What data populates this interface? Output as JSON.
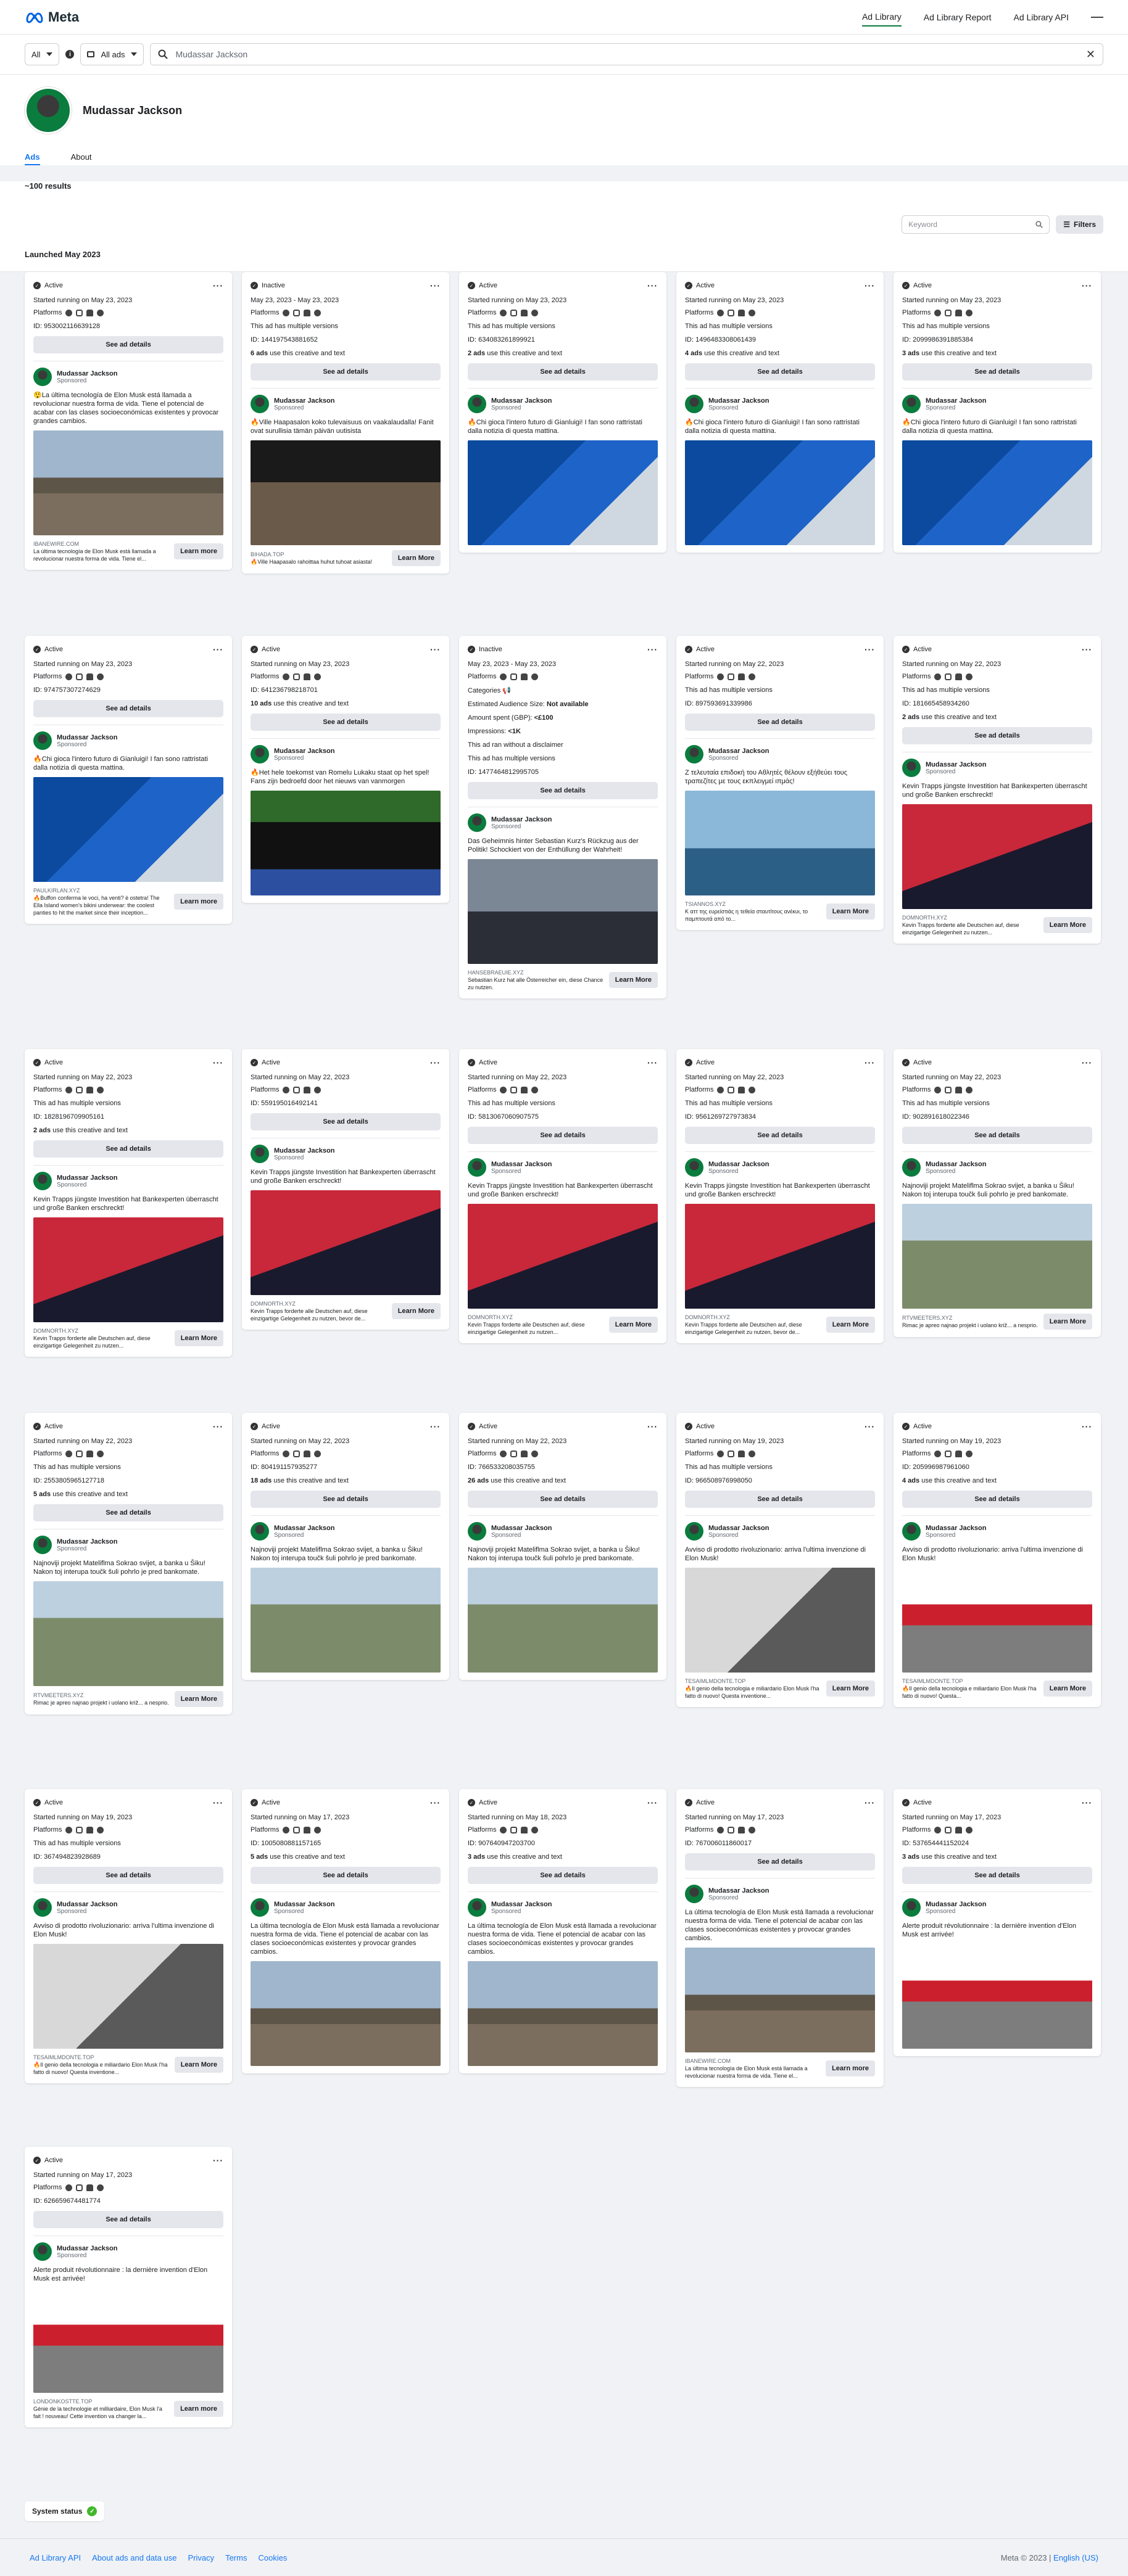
{
  "header": {
    "logo": "Meta",
    "nav": [
      {
        "label": "Ad Library",
        "active": true
      },
      {
        "label": "Ad Library Report"
      },
      {
        "label": "Ad Library API"
      }
    ]
  },
  "filters": {
    "country": "All",
    "ad_type": "All ads",
    "search_value": "Mudassar Jackson"
  },
  "profile": {
    "name": "Mudassar Jackson",
    "tabs": [
      {
        "label": "Ads",
        "active": true
      },
      {
        "label": "About"
      }
    ],
    "results": "~100 results",
    "keyword_placeholder": "Keyword",
    "filters_label": "Filters",
    "launched": "Launched May 2023"
  },
  "labels": {
    "platforms": "Platforms",
    "see_details": "See ad details",
    "sponsored": "Sponsored",
    "use_suffix": " use this creative and text",
    "multi": "This ad has multiple versions"
  },
  "cards": [
    {
      "status": "Active",
      "run": "Started running on May 23, 2023",
      "id": "ID: 953002116639128",
      "multi": false,
      "uses": "",
      "adv": "Mudassar Jackson",
      "text": "😲La última tecnología de Elon Musk está llamada a revolucionar nuestra forma de vida. Tiene el potencial de acabar con las clases socioeconómicas existentes y provocar grandes cambios.",
      "img": "i-tesla",
      "cap_site": "IBANEWIRE.COM",
      "cap": "La última tecnología de Elon Musk está llamada a revolucionar nuestra forma de vida. Tiene el...",
      "cta": "Learn more"
    },
    {
      "status": "Inactive",
      "run": "May 23, 2023 - May 23, 2023",
      "id": "ID: 144197543881652",
      "multi": true,
      "uses": "6 ads",
      "adv": "Mudassar Jackson",
      "text": "🔥Ville Haapasalon koko tulevaisuus on vaakalaudalla! Fanit ovat surullisia tämän päivän uutisista",
      "img": "i-concert",
      "cap_site": "BIHADA.TOP",
      "cap": "🔥Ville Haapasalo rahoittaa huhut tuhoat asiasta!",
      "cta": "Learn More"
    },
    {
      "status": "Active",
      "run": "Started running on May 23, 2023",
      "id": "ID: 634083261899921",
      "multi": true,
      "uses": "2 ads",
      "adv": "Mudassar Jackson",
      "text": "🔥Chi gioca l'intero futuro di Gianluigi! I fan sono rattristati dalla notizia di questa mattina.",
      "img": "i-buffon",
      "cap_site": "",
      "cap": "",
      "cta": ""
    },
    {
      "status": "Active",
      "run": "Started running on May 23, 2023",
      "id": "ID: 1496483308061439",
      "multi": true,
      "uses": "4 ads",
      "adv": "Mudassar Jackson",
      "text": "🔥Chi gioca l'intero futuro di Gianluigi! I fan sono rattristati dalla notizia di questa mattina.",
      "img": "i-buffon",
      "cap_site": "",
      "cap": "",
      "cta": ""
    },
    {
      "status": "Active",
      "run": "Started running on May 23, 2023",
      "id": "ID: 2099986391885384",
      "multi": true,
      "uses": "3 ads",
      "adv": "Mudassar Jackson",
      "text": "🔥Chi gioca l'intero futuro di Gianluigi! I fan sono rattristati dalla notizia di questa mattina.",
      "img": "i-buffon",
      "cap_site": "",
      "cap": "",
      "cta": ""
    },
    {
      "status": "Active",
      "run": "Started running on May 23, 2023",
      "id": "ID: 974757307274629",
      "multi": false,
      "uses": "",
      "adv": "Mudassar Jackson",
      "text": "🔥Chi gioca l'intero futuro di Gianluigi! I fan sono rattristati dalla notizia di questa mattina.",
      "img": "i-buffon",
      "cap_site": "PAULKIRLAN.XYZ",
      "cap": "🔥Buffon conferma le voci, ha venti? è ostetra! The Ella Island women's bikini underwear: the coolest panties to hit the market since their inception...",
      "cta": "Learn more"
    },
    {
      "status": "Active",
      "run": "Started running on May 23, 2023",
      "id": "ID: 641236798218701",
      "multi": false,
      "uses": "10 ads",
      "adv": "Mudassar Jackson",
      "text": "🔥Het hele toekomst van Romelu Lukaku staat op het spel! Fans zijn bedroefd door het nieuws van vanmorgen",
      "img": "i-lukaku",
      "cap_site": "",
      "cap": "",
      "cta": ""
    },
    {
      "status": "Inactive",
      "run": "May 23, 2023 - May 23, 2023",
      "id": "ID: 1477464812995705",
      "multi": true,
      "uses": "",
      "adv": "Mudassar Jackson",
      "text": "Das Geheimnis hinter Sebastian Kurz's Rückzug aus der Politik! Schockiert von der Enthüllung der Wahrheit!",
      "img": "i-kurz",
      "cap_site": "HANSEBRAEUIE.XYZ",
      "cap": "Sebastian Kurz hat alle Österreicher ein, diese Chance zu nutzen.",
      "cta": "Learn More",
      "eu": true
    },
    {
      "status": "Active",
      "run": "Started running on May 22, 2023",
      "id": "ID: 897593691339986",
      "multi": true,
      "uses": "",
      "adv": "Mudassar Jackson",
      "text": "Ζ τελευταία επιδοκή του Αθλητές θέλουν εξήθεύει τους τραπεζίτες με τους εκπλειγμεί ιπμάς!",
      "img": "i-yacht",
      "cap_site": "TSIANNOS.XYZ",
      "cap": "Κ αττ της ευρείστιάς η τεθεία σταυτίτους ανέκυι, το παμπτουτά από το...",
      "cta": "Learn More"
    },
    {
      "status": "Active",
      "run": "Started running on May 22, 2023",
      "id": "ID: 181665458934260",
      "multi": true,
      "uses": "2 ads",
      "adv": "Mudassar Jackson",
      "text": "Kevin Trapps jüngste Investition hat Bankexperten überrascht und große Banken erschreckt!",
      "img": "i-trapp",
      "cap_site": "DOMNORTH.XYZ",
      "cap": "Kevin Trapps forderte alle Deutschen auf, diese einzigartige Gelegenheit zu nutzen...",
      "cta": "Learn More"
    },
    {
      "status": "Active",
      "run": "Started running on May 22, 2023",
      "id": "ID: 1828196709905161",
      "multi": true,
      "uses": "2 ads",
      "adv": "Mudassar Jackson",
      "text": "Kevin Trapps jüngste Investition hat Bankexperten überrascht und große Banken erschreckt!",
      "img": "i-trapp",
      "cap_site": "DOMNORTH.XYZ",
      "cap": "Kevin Trapps forderte alle Deutschen auf, diese einzigartige Gelegenheit zu nutzen...",
      "cta": "Learn More"
    },
    {
      "status": "Active",
      "run": "Started running on May 22, 2023",
      "id": "ID: 559195016492141",
      "multi": false,
      "uses": "",
      "adv": "Mudassar Jackson",
      "text": "Kevin Trapps jüngste Investition hat Bankexperten überrascht und große Banken erschreckt!",
      "img": "i-trapp",
      "cap_site": "DOMNORTH.XYZ",
      "cap": "Kevin Trapps forderte alle Deutschen auf, diese einzigartige Gelegenheit zu nutzen, bevor de...",
      "cta": "Learn More"
    },
    {
      "status": "Active",
      "run": "Started running on May 22, 2023",
      "id": "ID: 5813067060907575",
      "multi": true,
      "uses": "",
      "adv": "Mudassar Jackson",
      "text": "Kevin Trapps jüngste Investition hat Bankexperten überrascht und große Banken erschreckt!",
      "img": "i-trapp",
      "cap_site": "DOMNORTH.XYZ",
      "cap": "Kevin Trapps forderte alle Deutschen auf, diese einzigartige Gelegenheit zu nutzen...",
      "cta": "Learn More"
    },
    {
      "status": "Active",
      "run": "Started running on May 22, 2023",
      "id": "ID: 9561269727973834",
      "multi": true,
      "uses": "",
      "adv": "Mudassar Jackson",
      "text": "Kevin Trapps jüngste Investition hat Bankexperten überrascht und große Banken erschreckt!",
      "img": "i-trapp",
      "cap_site": "DOMNORTH.XYZ",
      "cap": "Kevin Trapps forderte alle Deutschen auf, diese einzigartige Gelegenheit zu nutzen, bevor de...",
      "cta": "Learn More"
    },
    {
      "status": "Active",
      "run": "Started running on May 22, 2023",
      "id": "ID: 902891618022346",
      "multi": true,
      "uses": "",
      "adv": "Mudassar Jackson",
      "text": "Najnoviji projekt Mateliflma Sokrao svijet, a banka u Šiku! Nakon toj interupa toučk šuli pohrlo je pred bankomate.",
      "img": "i-village",
      "cap_site": "RTVMEETERS.XYZ",
      "cap": "Rimac je apreo najnao projekt i uolano križ... a nesprio.",
      "cta": "Learn More"
    },
    {
      "status": "Active",
      "run": "Started running on May 22, 2023",
      "id": "ID: 2553805965127718",
      "multi": true,
      "uses": "5 ads",
      "adv": "Mudassar Jackson",
      "text": "Najnoviji projekt Mateliflma Sokrao svijet, a banka u Šiku! Nakon toj interupa toučk šuli pohrlo je pred bankomate.",
      "img": "i-village",
      "cap_site": "RTVMEETERS.XYZ",
      "cap": "Rimac je apreo najnao projekt i uolano križ... a nesprio.",
      "cta": "Learn More"
    },
    {
      "status": "Active",
      "run": "Started running on May 22, 2023",
      "id": "ID: 804191157935277",
      "multi": false,
      "uses": "18 ads",
      "adv": "Mudassar Jackson",
      "text": "Najnoviji projekt Mateliflma Sokrao svijet, a banka u Šiku! Nakon toj interupa toučk šuli pohrlo je pred bankomate.",
      "img": "i-village",
      "cap_site": "",
      "cap": "",
      "cta": ""
    },
    {
      "status": "Active",
      "run": "Started running on May 22, 2023",
      "id": "ID: 766533208035755",
      "multi": false,
      "uses": "26 ads",
      "adv": "Mudassar Jackson",
      "text": "Najnoviji projekt Mateliflma Sokrao svijet, a banka u Šiku! Nakon toj interupa toučk šuli pohrlo je pred bankomate.",
      "img": "i-village",
      "cap_site": "",
      "cap": "",
      "cta": ""
    },
    {
      "status": "Active",
      "run": "Started running on May 19, 2023",
      "id": "ID: 966508976998050",
      "multi": true,
      "uses": "",
      "adv": "Mudassar Jackson",
      "text": "Avviso di prodotto rivoluzionario: arriva l'ultima invenzione di Elon Musk!",
      "img": "i-device",
      "cap_site": "TESAIMLMDONTE.TOP",
      "cap": "🔥Il genio della tecnologia e miliardario Elon Musk l'ha fatto di nuovo! Questa inventione...",
      "cta": "Learn More"
    },
    {
      "status": "Active",
      "run": "Started running on May 19, 2023",
      "id": "ID: 205996987961060",
      "multi": false,
      "uses": "4 ads",
      "adv": "Mudassar Jackson",
      "text": "Avviso di prodotto rivoluzionario: arriva l'ultima invenzione di Elon Musk!",
      "img": "i-teslastore",
      "cap_site": "TESAIMLMDONTE.TOP",
      "cap": "🔥Il genio della tecnologia e miliardario Elon Musk l'ha fatto di nuovo! Questa...",
      "cta": "Learn More"
    },
    {
      "status": "Active",
      "run": "Started running on May 19, 2023",
      "id": "ID: 367494823928689",
      "multi": true,
      "uses": "",
      "adv": "Mudassar Jackson",
      "text": "Avviso di prodotto rivoluzionario: arriva l'ultima invenzione di Elon Musk!",
      "img": "i-device",
      "cap_site": "TESAIMLMDONTE.TOP",
      "cap": "🔥Il genio della tecnologia e miliardario Elon Musk l'ha fatto di nuovo! Questa inventione...",
      "cta": "Learn More"
    },
    {
      "status": "Active",
      "run": "Started running on May 17, 2023",
      "id": "ID: 1005080881157165",
      "multi": false,
      "uses": "5 ads",
      "adv": "Mudassar Jackson",
      "text": "La última tecnología de Elon Musk está llamada a revolucionar nuestra forma de vida. Tiene el potencial de acabar con las clases socioeconómicas existentes y provocar grandes cambios.",
      "img": "i-tesla",
      "cap_site": "",
      "cap": "",
      "cta": ""
    },
    {
      "status": "Active",
      "run": "Started running on May 18, 2023",
      "id": "ID: 907640947203700",
      "multi": false,
      "uses": "3 ads",
      "adv": "Mudassar Jackson",
      "text": "La última tecnología de Elon Musk está llamada a revolucionar nuestra forma de vida. Tiene el potencial de acabar con las clases socioeconómicas existentes y provocar grandes cambios.",
      "img": "i-tesla",
      "cap_site": "",
      "cap": "",
      "cta": ""
    },
    {
      "status": "Active",
      "run": "Started running on May 17, 2023",
      "id": "ID: 767006011860017",
      "multi": false,
      "uses": "",
      "adv": "Mudassar Jackson",
      "text": "La última tecnología de Elon Musk está llamada a revolucionar nuestra forma de vida. Tiene el potencial de acabar con las clases socioeconómicas existentes y provocar grandes cambios.",
      "img": "i-tesla",
      "cap_site": "IBANEWIRE.COM",
      "cap": "La última tecnología de Elon Musk está llamada a revolucionar nuestra forma de vida. Tiene el...",
      "cta": "Learn more"
    },
    {
      "status": "Active",
      "run": "Started running on May 17, 2023",
      "id": "ID: 537654441152024",
      "multi": false,
      "uses": "3 ads",
      "adv": "Mudassar Jackson",
      "text": "Alerte produit révolutionnaire : la dernière invention d'Elon Musk est arrivée!",
      "img": "i-teslastore",
      "cap_site": "",
      "cap": "",
      "cta": ""
    },
    {
      "status": "Active",
      "run": "Started running on May 17, 2023",
      "id": "ID: 626659674481774",
      "multi": false,
      "uses": "",
      "adv": "Mudassar Jackson",
      "text": "Alerte produit révolutionnaire : la dernière invention d'Elon Musk est arrivée!",
      "img": "i-teslastore",
      "cap_site": "LONDONKOSTTE.TOP",
      "cap": "Génie de la technologie et milliardaire, Elon Musk l'a fait ! nouveau! Cette invention va changer la...",
      "cta": "Learn more"
    }
  ],
  "eu": {
    "categories": "Categories",
    "audience": "Estimated Audience Size:",
    "audience_val": "Not available",
    "amount": "Amount spent (GBP):",
    "amount_val": "<£100",
    "impr": "Impressions:",
    "impr_val": "<1K",
    "disclaimer": "This ad ran without a disclaimer"
  },
  "status": {
    "label": "System status"
  },
  "footer": {
    "links": [
      "Ad Library API",
      "About ads and data use",
      "Privacy",
      "Terms",
      "Cookies"
    ],
    "copyright": "Meta © 2023",
    "language": "English (US)"
  }
}
